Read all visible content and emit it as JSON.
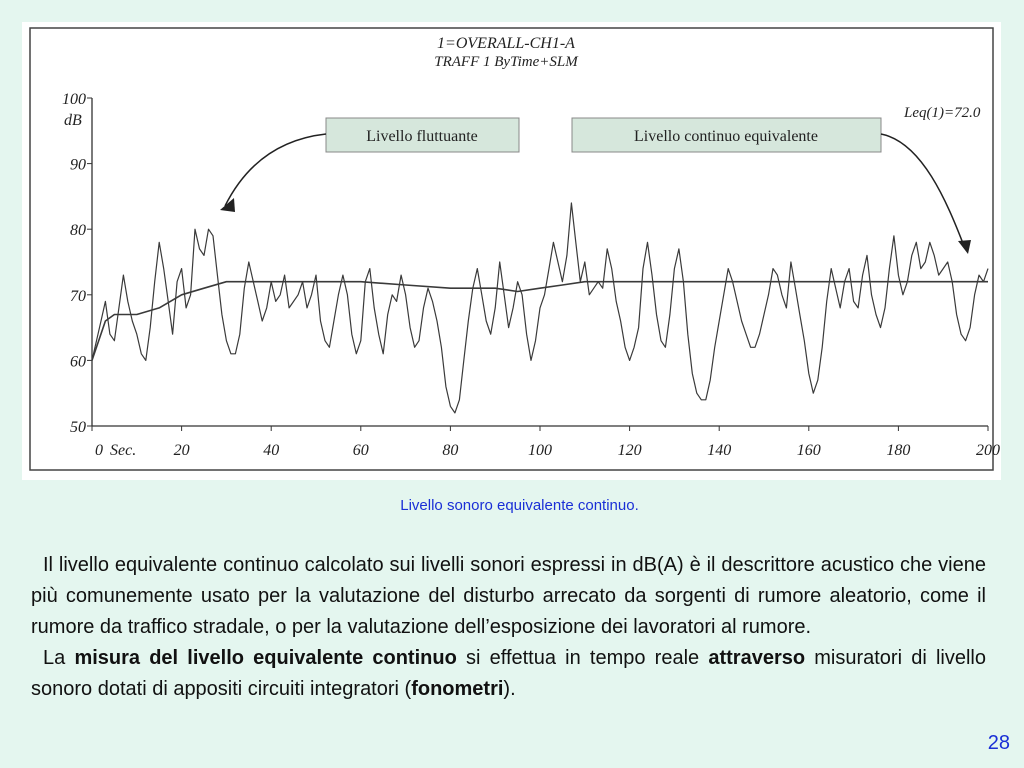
{
  "chart_data": {
    "type": "line",
    "title": "1=OVERALL-CH1-A",
    "subtitle": "TRAFF 1 ByTime+SLM",
    "ylabel": "dB",
    "x_unit_label": "Sec.",
    "xlim": [
      0,
      200
    ],
    "ylim": [
      50,
      100
    ],
    "x_ticks": [
      "0",
      "20",
      "40",
      "60",
      "80",
      "100",
      "120",
      "140",
      "160",
      "180",
      "200"
    ],
    "y_ticks": [
      "100",
      "90",
      "80",
      "70",
      "60",
      "50"
    ],
    "annotations": {
      "fluctuating": "Livello fluttuante",
      "equivalent": "Livello continuo equivalente",
      "leq_readout": "Leq(1)=72.0"
    },
    "series": [
      {
        "label": "Livello fluttuante",
        "x": [
          0,
          2,
          3,
          4,
          5,
          6,
          7,
          8,
          9,
          10,
          11,
          12,
          13,
          14,
          15,
          16,
          17,
          18,
          19,
          20,
          21,
          22,
          23,
          24,
          25,
          26,
          27,
          28,
          29,
          30,
          31,
          32,
          33,
          34,
          35,
          36,
          37,
          38,
          39,
          40,
          41,
          42,
          43,
          44,
          45,
          46,
          47,
          48,
          49,
          50,
          51,
          52,
          53,
          54,
          55,
          56,
          57,
          58,
          59,
          60,
          61,
          62,
          63,
          64,
          65,
          66,
          67,
          68,
          69,
          70,
          71,
          72,
          73,
          74,
          75,
          76,
          77,
          78,
          79,
          80,
          81,
          82,
          83,
          84,
          85,
          86,
          87,
          88,
          89,
          90,
          91,
          92,
          93,
          94,
          95,
          96,
          97,
          98,
          99,
          100,
          101,
          102,
          103,
          104,
          105,
          106,
          107,
          108,
          109,
          110,
          111,
          112,
          113,
          114,
          115,
          116,
          117,
          118,
          119,
          120,
          121,
          122,
          123,
          124,
          125,
          126,
          127,
          128,
          129,
          130,
          131,
          132,
          133,
          134,
          135,
          136,
          137,
          138,
          139,
          140,
          141,
          142,
          143,
          144,
          145,
          146,
          147,
          148,
          149,
          150,
          151,
          152,
          153,
          154,
          155,
          156,
          157,
          158,
          159,
          160,
          161,
          162,
          163,
          164,
          165,
          166,
          167,
          168,
          169,
          170,
          171,
          172,
          173,
          174,
          175,
          176,
          177,
          178,
          179,
          180,
          181,
          182,
          183,
          184,
          185,
          186,
          187,
          188,
          189,
          190,
          191,
          192,
          193,
          194,
          195,
          196,
          197,
          198,
          199,
          200
        ],
        "y": [
          60,
          66,
          69,
          64,
          63,
          68,
          73,
          69,
          66,
          64,
          61,
          60,
          65,
          72,
          78,
          74,
          69,
          64,
          72,
          74,
          68,
          70,
          80,
          77,
          76,
          80,
          79,
          73,
          67,
          63,
          61,
          61,
          64,
          71,
          75,
          72,
          69,
          66,
          68,
          72,
          69,
          70,
          73,
          68,
          69,
          70,
          72,
          68,
          70,
          73,
          66,
          63,
          62,
          66,
          70,
          73,
          70,
          64,
          61,
          63,
          72,
          74,
          68,
          64,
          61,
          67,
          70,
          69,
          73,
          70,
          65,
          62,
          63,
          68,
          71,
          69,
          66,
          62,
          56,
          53,
          52,
          54,
          60,
          66,
          71,
          74,
          70,
          66,
          64,
          68,
          75,
          70,
          65,
          68,
          72,
          70,
          64,
          60,
          63,
          68,
          70,
          74,
          78,
          75,
          72,
          76,
          84,
          78,
          72,
          75,
          70,
          71,
          72,
          71,
          77,
          74,
          69,
          66,
          62,
          60,
          62,
          65,
          74,
          78,
          73,
          67,
          63,
          62,
          67,
          74,
          77,
          72,
          64,
          58,
          55,
          54,
          54,
          57,
          62,
          66,
          70,
          74,
          72,
          69,
          66,
          64,
          62,
          62,
          64,
          67,
          70,
          74,
          73,
          70,
          68,
          75,
          71,
          67,
          63,
          58,
          55,
          57,
          62,
          69,
          74,
          71,
          68,
          72,
          74,
          69,
          68,
          73,
          76,
          70,
          67,
          65,
          68,
          74,
          79,
          73,
          70,
          72,
          76,
          78,
          74,
          75,
          78,
          76,
          73,
          74,
          75,
          72,
          67,
          64,
          63,
          65,
          70,
          73,
          72,
          74
        ],
        "color": "#3a3a3a"
      },
      {
        "label": "Livello continuo equivalente",
        "x": [
          0,
          3,
          5,
          8,
          10,
          15,
          20,
          25,
          30,
          40,
          50,
          60,
          70,
          80,
          90,
          95,
          100,
          105,
          110,
          120,
          140,
          160,
          180,
          200
        ],
        "y": [
          60,
          66,
          67,
          67,
          67,
          68,
          70,
          71,
          72,
          72,
          72,
          72,
          71.5,
          71,
          71,
          70.5,
          71,
          71.5,
          72,
          72,
          72,
          72,
          72,
          72
        ],
        "color": "#3a3a3a"
      }
    ]
  },
  "caption": "Livello sonoro equivalente continuo.",
  "paragraph1": "Il livello equivalente continuo calcolato sui livelli sonori espressi in dB(A) è il descrittore acustico che viene più comunemente usato per la valutazione del disturbo arrecato da sorgenti di rumore aleatorio, come il rumore da traffico stradale, o per la valutazione dell’esposizione dei lavoratori al rumore.",
  "paragraph2": {
    "t1": "La ",
    "b1": "misura del livello equivalente continuo",
    "t2": " si effettua in tempo reale ",
    "b2": "attraverso",
    "t3": " misuratori di livello sonoro dotati di appositi circuiti integratori (",
    "b3": "fonometri",
    "t4": ")."
  },
  "page_number": "28"
}
